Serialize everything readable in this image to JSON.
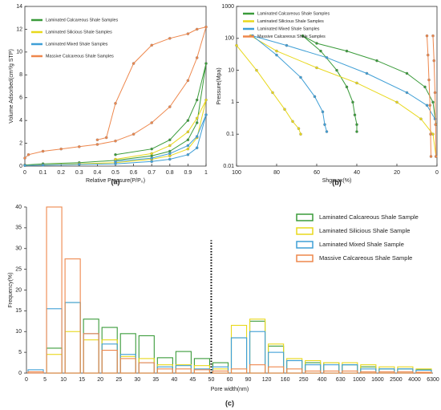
{
  "chart_data": [
    {
      "type": "line",
      "caption": "(a)",
      "xlabel": "Relative Pressure(P/P₀)",
      "ylabel": "Volume Adsorbed(cm³/g STP)",
      "xlim": [
        0,
        1
      ],
      "xticks": [
        0,
        0.1,
        0.2,
        0.3,
        0.4,
        0.5,
        0.6,
        0.7,
        0.8,
        0.9,
        1
      ],
      "ylim": [
        0,
        14
      ],
      "yticks": [
        0,
        2,
        4,
        6,
        8,
        10,
        12,
        14
      ],
      "log": false,
      "legend": "upper left",
      "series": [
        {
          "name": "Laminated Calcareous Shale Samples",
          "color": "#3a9b3a",
          "x": [
            0,
            0.1,
            0.3,
            0.5,
            0.7,
            0.8,
            0.9,
            0.95,
            1.0,
            0.95,
            0.9,
            0.8,
            0.7,
            0.5
          ],
          "values": [
            0.1,
            0.2,
            0.3,
            0.5,
            0.9,
            1.3,
            2.3,
            3.8,
            9.0,
            5.8,
            4.0,
            2.3,
            1.5,
            1.0
          ]
        },
        {
          "name": "Laminated Silicious Shale Samples",
          "color": "#e8d81c",
          "x": [
            0,
            0.1,
            0.3,
            0.5,
            0.7,
            0.8,
            0.9,
            0.95,
            1.0,
            0.95,
            0.9,
            0.8,
            0.7,
            0.5
          ],
          "values": [
            0.05,
            0.1,
            0.2,
            0.3,
            0.6,
            0.9,
            1.5,
            2.5,
            5.8,
            4.2,
            3.0,
            1.8,
            1.1,
            0.6
          ]
        },
        {
          "name": "Laminated Mixed Shale Samples",
          "color": "#3f9fd6",
          "x": [
            0,
            0.1,
            0.3,
            0.5,
            0.7,
            0.8,
            0.9,
            0.95,
            1.0,
            0.95,
            0.9,
            0.8,
            0.7,
            0.5
          ],
          "values": [
            0.05,
            0.08,
            0.15,
            0.2,
            0.4,
            0.6,
            1.0,
            1.6,
            4.5,
            2.6,
            1.8,
            1.1,
            0.7,
            0.4
          ]
        },
        {
          "name": "Massive Calcareous Shale Samples",
          "color": "#ee874c",
          "x": [
            0,
            0.02,
            0.1,
            0.2,
            0.3,
            0.4,
            0.5,
            0.6,
            0.7,
            0.8,
            0.9,
            0.95,
            1.0,
            0.95,
            0.9,
            0.8,
            0.7,
            0.6,
            0.5,
            0.45,
            0.4
          ],
          "values": [
            0.7,
            1.0,
            1.3,
            1.5,
            1.7,
            1.9,
            2.2,
            2.8,
            3.8,
            5.2,
            7.5,
            9.5,
            12.2,
            12.0,
            11.6,
            11.2,
            10.6,
            9.0,
            5.5,
            2.5,
            2.3
          ]
        }
      ]
    },
    {
      "type": "line",
      "caption": "(b)",
      "xlabel": "Shgmax(%)",
      "ylabel": "Pressure(Mpa)",
      "xlim": [
        100,
        0
      ],
      "xticks": [
        100,
        80,
        60,
        40,
        20,
        0
      ],
      "ylim": [
        0.01,
        1000
      ],
      "yticks": [
        0.01,
        0.1,
        1,
        10,
        100,
        1000
      ],
      "log": true,
      "legend": "upper left",
      "series": [
        {
          "name": "Laminated Calcareous Shale Samples",
          "color": "#3a9b3a",
          "x": [
            67,
            60,
            45,
            30,
            15,
            6,
            2,
            0.5,
            null,
            67,
            58,
            50,
            45,
            42,
            41,
            40,
            40
          ],
          "values": [
            120,
            70,
            40,
            20,
            8,
            3,
            1,
            0.2,
            null,
            120,
            40,
            10,
            3,
            1,
            0.4,
            0.2,
            0.12
          ]
        },
        {
          "name": "Laminated Silicious Shale Samples",
          "color": "#e8d81c",
          "x": [
            93,
            80,
            60,
            40,
            20,
            8,
            2,
            0.5,
            null,
            100,
            90,
            82,
            76,
            72,
            69,
            68
          ],
          "values": [
            120,
            40,
            12,
            4,
            1,
            0.3,
            0.1,
            0.02,
            null,
            60,
            10,
            2,
            0.6,
            0.25,
            0.15,
            0.1
          ]
        },
        {
          "name": "Laminated Mixed Shale Samples",
          "color": "#3f9fd6",
          "x": [
            92,
            75,
            55,
            35,
            15,
            5,
            1,
            null,
            92,
            80,
            68,
            61,
            57,
            56,
            55
          ],
          "values": [
            120,
            60,
            25,
            8,
            2,
            0.8,
            0.3,
            null,
            120,
            30,
            6,
            1.5,
            0.5,
            0.2,
            0.12
          ]
        },
        {
          "name": "Massive Calcareous Shale Samples",
          "color": "#ee874c",
          "x": [
            5,
            4.5,
            4,
            3.5,
            3.2,
            3,
            null,
            2,
            1.5,
            1,
            0.7,
            0.5
          ],
          "values": [
            120,
            30,
            5,
            0.8,
            0.1,
            0.02,
            null,
            120,
            20,
            2,
            0.2,
            0.02
          ]
        }
      ]
    },
    {
      "type": "histogram",
      "caption": "(c)",
      "xlabel": "Pore width(nm)",
      "ylabel": "Frequency(%)",
      "bins": [
        0,
        5,
        10,
        15,
        20,
        25,
        30,
        35,
        40,
        45,
        50,
        60,
        90,
        120,
        160,
        250,
        400,
        630,
        1000,
        1600,
        2500,
        4000,
        6300
      ],
      "ylim": [
        0,
        40
      ],
      "yticks": [
        0,
        5,
        10,
        15,
        20,
        25,
        30,
        35,
        40
      ],
      "legend": "upper right",
      "series": [
        {
          "name": "Laminated Calcareous Shale Sample",
          "color": "#3a9b3a",
          "values": [
            0,
            6,
            17,
            13,
            11,
            9.5,
            9,
            3.7,
            5.2,
            3.5,
            2.5,
            8.5,
            12.5,
            6.5,
            3,
            2.5,
            2.5,
            2,
            1.5,
            1,
            1,
            0.8
          ]
        },
        {
          "name": "Laminated Silicious Shale Sample",
          "color": "#e8d81c",
          "values": [
            0,
            4.5,
            10,
            8,
            8,
            4,
            3.5,
            2,
            2,
            1.8,
            1,
            11.5,
            13,
            7,
            3.5,
            3,
            2.5,
            2.5,
            2,
            1.5,
            1.5,
            1
          ]
        },
        {
          "name": "Laminated Mixed Shale Sample",
          "color": "#3f9fd6",
          "values": [
            0.8,
            15.5,
            17,
            9.5,
            7,
            4.5,
            2.5,
            1.5,
            1.8,
            1,
            1.5,
            8.5,
            10,
            5,
            3,
            2,
            2,
            2,
            1,
            1,
            1,
            0.7
          ]
        },
        {
          "name": "Massive Calcareous Shale Sample",
          "color": "#ee874c",
          "values": [
            0.3,
            40,
            27.5,
            9.5,
            5.5,
            3.5,
            2.5,
            1,
            1,
            0.8,
            0.5,
            1,
            2,
            1.5,
            1,
            0.5,
            0.5,
            0.5,
            0.3,
            0.3,
            0.3,
            0.2
          ]
        }
      ]
    }
  ]
}
